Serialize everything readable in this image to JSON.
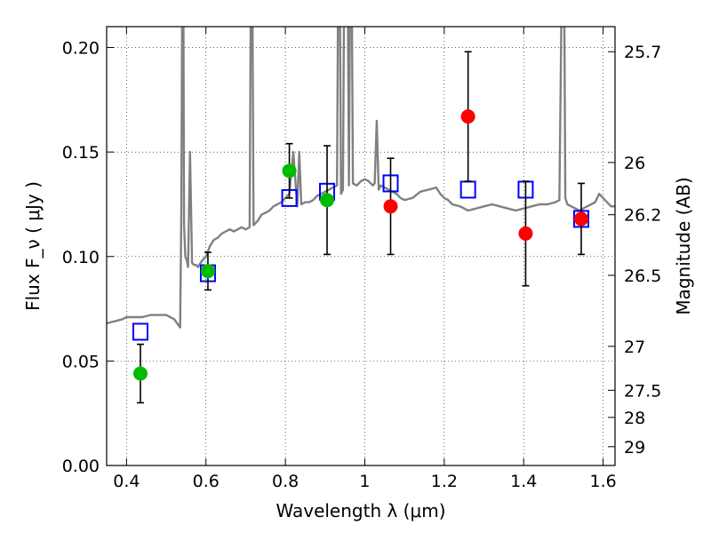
{
  "chart_data": {
    "type": "scatter",
    "xlabel": "Wavelength  λ (μm)",
    "ylabel": "Flux  F_ν  ( μJy )",
    "ylabel_right": "Magnitude (AB)",
    "xlim": [
      0.35,
      1.63
    ],
    "ylim": [
      0.0,
      0.21
    ],
    "grid": true,
    "x_ticks": [
      0.4,
      0.6,
      0.8,
      1.0,
      1.2,
      1.4,
      1.6
    ],
    "x_tick_labels": [
      "0.4",
      "0.6",
      "0.8",
      "1",
      "1.2",
      "1.4",
      "1.6"
    ],
    "y_ticks": [
      0.0,
      0.05,
      0.1,
      0.15,
      0.2
    ],
    "y_tick_labels": [
      "0.00",
      "0.05",
      "0.10",
      "0.15",
      "0.20"
    ],
    "right_ticks": [
      {
        "label": "25.7",
        "flux": 0.198
      },
      {
        "label": "26",
        "flux": 0.145
      },
      {
        "label": "26.2",
        "flux": 0.12
      },
      {
        "label": "26.5",
        "flux": 0.091
      },
      {
        "label": "27",
        "flux": 0.057
      },
      {
        "label": "27.5",
        "flux": 0.036
      },
      {
        "label": "28",
        "flux": 0.023
      },
      {
        "label": "29",
        "flux": 0.009
      }
    ],
    "colors": {
      "spectrum": "#808080",
      "green": "#00bb00",
      "red": "#ff0000",
      "model": "#0000ff",
      "errorbar": "#000000"
    },
    "model_points": {
      "x": [
        0.435,
        0.605,
        0.81,
        0.905,
        1.065,
        1.26,
        1.405,
        1.545
      ],
      "y": [
        0.064,
        0.092,
        0.128,
        0.131,
        0.135,
        0.132,
        0.132,
        0.118
      ]
    },
    "observed_green": {
      "x": [
        0.435,
        0.605,
        0.81,
        0.905
      ],
      "y": [
        0.044,
        0.093,
        0.141,
        0.127
      ],
      "err": [
        0.014,
        0.009,
        0.013,
        0.026
      ]
    },
    "observed_red": {
      "x": [
        1.065,
        1.26,
        1.405,
        1.545
      ],
      "y": [
        0.124,
        0.167,
        0.111,
        0.118
      ],
      "err": [
        0.023,
        0.031,
        0.025,
        0.017
      ]
    },
    "spectrum": {
      "x": [
        0.35,
        0.37,
        0.39,
        0.4,
        0.42,
        0.44,
        0.46,
        0.48,
        0.5,
        0.52,
        0.535,
        0.538,
        0.542,
        0.545,
        0.548,
        0.552,
        0.555,
        0.56,
        0.565,
        0.57,
        0.575,
        0.58,
        0.59,
        0.6,
        0.61,
        0.62,
        0.63,
        0.64,
        0.65,
        0.66,
        0.67,
        0.68,
        0.69,
        0.7,
        0.71,
        0.715,
        0.72,
        0.725,
        0.73,
        0.74,
        0.75,
        0.76,
        0.77,
        0.78,
        0.79,
        0.8,
        0.81,
        0.82,
        0.83,
        0.835,
        0.84,
        0.85,
        0.86,
        0.87,
        0.88,
        0.89,
        0.9,
        0.91,
        0.92,
        0.93,
        0.935,
        0.94,
        0.945,
        0.95,
        0.955,
        0.96,
        0.965,
        0.97,
        0.98,
        0.99,
        1.0,
        1.01,
        1.02,
        1.025,
        1.03,
        1.035,
        1.04,
        1.05,
        1.06,
        1.07,
        1.08,
        1.09,
        1.1,
        1.12,
        1.14,
        1.16,
        1.18,
        1.19,
        1.2,
        1.21,
        1.22,
        1.24,
        1.26,
        1.28,
        1.3,
        1.32,
        1.34,
        1.36,
        1.38,
        1.4,
        1.42,
        1.44,
        1.46,
        1.48,
        1.49,
        1.5,
        1.505,
        1.51,
        1.52,
        1.54,
        1.56,
        1.57,
        1.58,
        1.59,
        1.6,
        1.62,
        1.63
      ],
      "y": [
        0.068,
        0.069,
        0.07,
        0.071,
        0.071,
        0.071,
        0.072,
        0.072,
        0.072,
        0.07,
        0.066,
        0.12,
        0.3,
        0.115,
        0.1,
        0.098,
        0.095,
        0.15,
        0.097,
        0.096,
        0.096,
        0.095,
        0.098,
        0.1,
        0.105,
        0.108,
        0.109,
        0.111,
        0.112,
        0.113,
        0.112,
        0.113,
        0.114,
        0.113,
        0.114,
        0.3,
        0.115,
        0.116,
        0.117,
        0.12,
        0.121,
        0.122,
        0.124,
        0.125,
        0.126,
        0.128,
        0.13,
        0.15,
        0.124,
        0.15,
        0.125,
        0.126,
        0.126,
        0.127,
        0.129,
        0.13,
        0.131,
        0.132,
        0.133,
        0.134,
        0.3,
        0.13,
        0.132,
        0.3,
        0.3,
        0.134,
        0.3,
        0.135,
        0.134,
        0.136,
        0.137,
        0.136,
        0.134,
        0.135,
        0.165,
        0.132,
        0.134,
        0.133,
        0.132,
        0.131,
        0.13,
        0.128,
        0.127,
        0.128,
        0.131,
        0.132,
        0.133,
        0.13,
        0.128,
        0.127,
        0.125,
        0.124,
        0.122,
        0.123,
        0.124,
        0.125,
        0.124,
        0.123,
        0.122,
        0.123,
        0.124,
        0.125,
        0.125,
        0.126,
        0.127,
        0.3,
        0.128,
        0.125,
        0.124,
        0.122,
        0.124,
        0.125,
        0.126,
        0.13,
        0.128,
        0.124,
        0.124
      ]
    }
  }
}
